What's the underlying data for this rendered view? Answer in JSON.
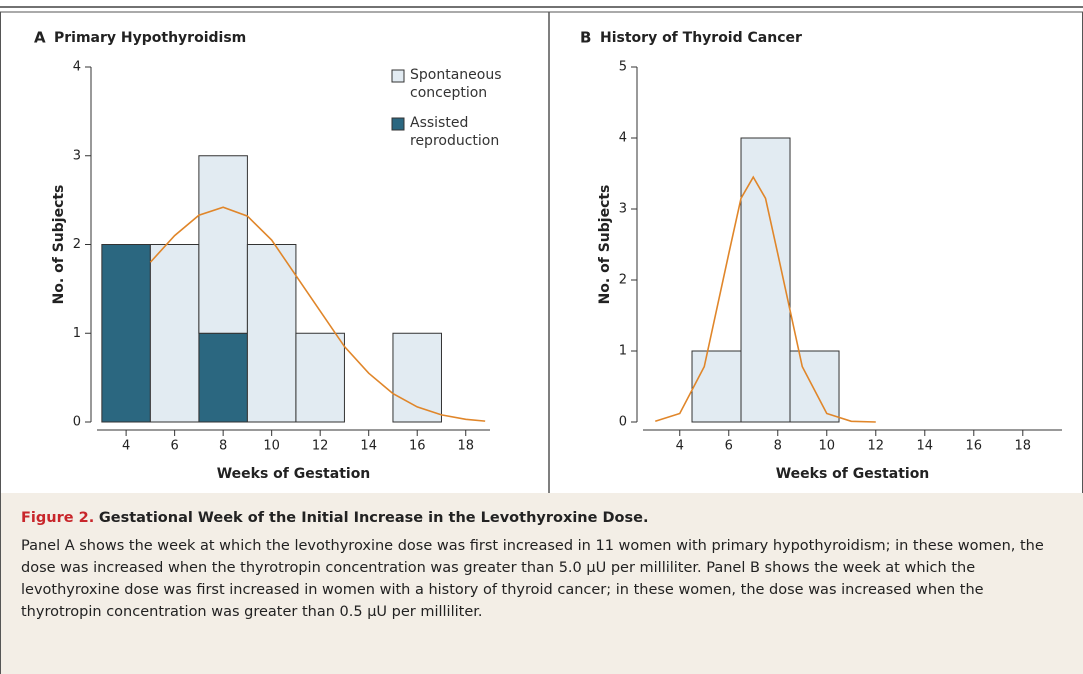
{
  "chart_data": [
    {
      "type": "histogram",
      "panel": "A",
      "title": "Primary Hypothyroidism",
      "xlabel": "Weeks of Gestation",
      "ylabel": "No. of Subjects",
      "bins": [
        3,
        5,
        7,
        9,
        11,
        13,
        15,
        17
      ],
      "series": [
        {
          "name": "Assisted reproduction",
          "color": "#2b6780",
          "values": [
            2,
            0,
            1,
            0,
            0,
            0,
            0
          ]
        },
        {
          "name": "Spontaneous conception",
          "color": "#e2ebf2",
          "values": [
            0,
            2,
            2,
            2,
            1,
            0,
            1
          ]
        }
      ],
      "curve": {
        "color": "#e0862a",
        "x": [
          5,
          6,
          7,
          8,
          9,
          10,
          11,
          12,
          13,
          14,
          15,
          16,
          17,
          18,
          18.8
        ],
        "values": [
          1.8,
          2.1,
          2.33,
          2.42,
          2.32,
          2.05,
          1.65,
          1.25,
          0.85,
          0.55,
          0.32,
          0.17,
          0.08,
          0.03,
          0.01
        ]
      },
      "xlim": [
        2.8,
        19
      ],
      "ylim": [
        0,
        4
      ],
      "xticks": [
        4,
        6,
        8,
        10,
        12,
        14,
        16,
        18
      ],
      "yticks": [
        0,
        1,
        2,
        3,
        4
      ],
      "legend": "upper right"
    },
    {
      "type": "histogram",
      "panel": "B",
      "title": "History of Thyroid Cancer",
      "xlabel": "Weeks of Gestation",
      "ylabel": "No. of Subjects",
      "bins": [
        4.5,
        6.5,
        8.5,
        10.5
      ],
      "series": [
        {
          "color": "#e2ebf2",
          "values": [
            1,
            4,
            1
          ]
        }
      ],
      "curve": {
        "color": "#e0862a",
        "x": [
          3,
          4,
          5,
          6,
          6.5,
          7,
          7.5,
          8,
          9,
          10,
          11,
          12
        ],
        "values": [
          0.01,
          0.12,
          0.78,
          2.37,
          3.15,
          3.45,
          3.15,
          2.37,
          0.78,
          0.12,
          0.01,
          0
        ]
      },
      "xlim": [
        2.5,
        19.6
      ],
      "ylim": [
        0,
        5
      ],
      "xticks": [
        4,
        6,
        8,
        10,
        12,
        14,
        16,
        18
      ],
      "yticks": [
        0,
        1,
        2,
        3,
        4,
        5
      ]
    }
  ],
  "caption": {
    "label": "Figure 2.",
    "title": "Gestational Week of the Initial Increase in the Levothyroxine Dose.",
    "text": "Panel A shows the week at which the levothyroxine dose was first increased in 11 women with primary hypothyroidism; in these women, the dose was increased when the thyrotropin concentration was greater than 5.0 µU per milliliter. Panel B shows the week at which the levothyroxine dose was first increased in women with a history of thyroid cancer; in these women, the dose was increased when the thyrotropin concentration was greater than 0.5 µU per milliliter."
  }
}
